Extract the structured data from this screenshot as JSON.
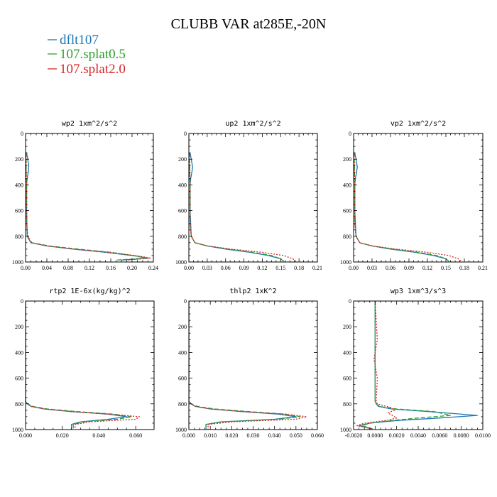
{
  "figure": {
    "title": "CLUBB VAR at285E,-20N"
  },
  "legend": [
    {
      "name": "dflt107",
      "color": "#1f77b4",
      "dash": "solid"
    },
    {
      "name": "107.splat0.5",
      "color": "#2ca02c",
      "dash": "dashed"
    },
    {
      "name": "107.splat2.0",
      "color": "#d62728",
      "dash": "dotted"
    }
  ],
  "chart_data": [
    {
      "type": "line",
      "title": "wp2  1xm^2/s^2",
      "xlim": [
        0,
        0.24
      ],
      "xticks": [
        0,
        0.04,
        0.08,
        0.12,
        0.16,
        0.2,
        0.24
      ],
      "xticklabels": [
        "0.00",
        "0.04",
        "0.08",
        "0.12",
        "0.16",
        "0.20",
        "0.24"
      ],
      "ylim": [
        1000,
        0
      ],
      "yticks": [
        0,
        200,
        400,
        600,
        800,
        1000
      ],
      "yticklabels": [
        "0",
        "200",
        "400",
        "600",
        "800",
        "1000"
      ],
      "series": [
        {
          "name": "dflt107",
          "x": [
            0.002,
            0.004,
            0.006,
            0.005,
            0.003,
            0.002,
            0.002,
            0.003,
            0.01,
            0.04,
            0.09,
            0.15,
            0.21,
            0.23,
            0.18
          ],
          "y": [
            150,
            200,
            250,
            300,
            350,
            400,
            600,
            800,
            850,
            875,
            900,
            925,
            955,
            970,
            985
          ]
        },
        {
          "name": "107.splat0.5",
          "x": [
            0.001,
            0.001,
            0.001,
            0.002,
            0.002,
            0.004,
            0.012,
            0.045,
            0.1,
            0.16,
            0.21,
            0.225,
            0.17
          ],
          "y": [
            150,
            200,
            300,
            400,
            700,
            800,
            850,
            875,
            900,
            925,
            955,
            970,
            985
          ]
        },
        {
          "name": "107.splat2.0",
          "x": [
            0.001,
            0.001,
            0.001,
            0.002,
            0.002,
            0.004,
            0.01,
            0.04,
            0.09,
            0.16,
            0.215,
            0.235,
            0.19
          ],
          "y": [
            150,
            200,
            300,
            400,
            700,
            800,
            850,
            875,
            900,
            925,
            955,
            970,
            985
          ]
        }
      ]
    },
    {
      "type": "line",
      "title": "up2  1xm^2/s^2",
      "xlim": [
        0,
        0.21
      ],
      "xticks": [
        0,
        0.03,
        0.06,
        0.09,
        0.12,
        0.15,
        0.18,
        0.21
      ],
      "xticklabels": [
        "0.00",
        "0.03",
        "0.06",
        "0.09",
        "0.12",
        "0.15",
        "0.18",
        "0.21"
      ],
      "ylim": [
        1000,
        0
      ],
      "yticks": [
        0,
        200,
        400,
        600,
        800,
        1000
      ],
      "yticklabels": [
        "0",
        "200",
        "400",
        "600",
        "800",
        "1000"
      ],
      "series": [
        {
          "name": "dflt107",
          "x": [
            0.002,
            0.004,
            0.006,
            0.005,
            0.003,
            0.002,
            0.002,
            0.004,
            0.01,
            0.03,
            0.06,
            0.1,
            0.13,
            0.15,
            0.155
          ],
          "y": [
            150,
            200,
            260,
            300,
            350,
            400,
            600,
            800,
            850,
            875,
            900,
            925,
            950,
            975,
            995
          ]
        },
        {
          "name": "107.splat0.5",
          "x": [
            0.001,
            0.001,
            0.002,
            0.002,
            0.004,
            0.01,
            0.03,
            0.065,
            0.105,
            0.135,
            0.15,
            0.155
          ],
          "y": [
            150,
            200,
            400,
            700,
            800,
            850,
            875,
            900,
            925,
            950,
            975,
            995
          ]
        },
        {
          "name": "107.splat2.0",
          "x": [
            0.001,
            0.001,
            0.002,
            0.002,
            0.004,
            0.01,
            0.03,
            0.07,
            0.12,
            0.155,
            0.17,
            0.175
          ],
          "y": [
            150,
            200,
            400,
            700,
            800,
            850,
            875,
            900,
            925,
            950,
            975,
            995
          ]
        }
      ]
    },
    {
      "type": "line",
      "title": "vp2  1xm^2/s^2",
      "xlim": [
        0,
        0.21
      ],
      "xticks": [
        0,
        0.03,
        0.06,
        0.09,
        0.12,
        0.15,
        0.18,
        0.21
      ],
      "xticklabels": [
        "0.00",
        "0.03",
        "0.06",
        "0.09",
        "0.12",
        "0.15",
        "0.18",
        "0.21"
      ],
      "ylim": [
        1000,
        0
      ],
      "yticks": [
        0,
        200,
        400,
        600,
        800,
        1000
      ],
      "yticklabels": [
        "0",
        "200",
        "400",
        "600",
        "800",
        "1000"
      ],
      "series": [
        {
          "name": "dflt107",
          "x": [
            0.002,
            0.004,
            0.006,
            0.005,
            0.003,
            0.002,
            0.002,
            0.004,
            0.01,
            0.03,
            0.06,
            0.1,
            0.13,
            0.15,
            0.155
          ],
          "y": [
            150,
            200,
            260,
            300,
            350,
            400,
            600,
            800,
            850,
            875,
            900,
            925,
            950,
            975,
            995
          ]
        },
        {
          "name": "107.splat0.5",
          "x": [
            0.001,
            0.001,
            0.002,
            0.002,
            0.004,
            0.01,
            0.03,
            0.065,
            0.105,
            0.135,
            0.15,
            0.155
          ],
          "y": [
            150,
            200,
            400,
            700,
            800,
            850,
            875,
            900,
            925,
            950,
            975,
            995
          ]
        },
        {
          "name": "107.splat2.0",
          "x": [
            0.001,
            0.001,
            0.002,
            0.002,
            0.004,
            0.01,
            0.03,
            0.07,
            0.12,
            0.155,
            0.17,
            0.175
          ],
          "y": [
            150,
            200,
            400,
            700,
            800,
            850,
            875,
            900,
            925,
            950,
            975,
            995
          ]
        }
      ]
    },
    {
      "type": "line",
      "title": "rtp2  1E-6x(kg/kg)^2",
      "xlim": [
        0,
        0.07
      ],
      "xticks": [
        0,
        0.02,
        0.04,
        0.06
      ],
      "xticklabels": [
        "0.000",
        "0.020",
        "0.040",
        "0.060"
      ],
      "ylim": [
        1000,
        0
      ],
      "yticks": [
        0,
        200,
        400,
        600,
        800,
        1000
      ],
      "yticklabels": [
        "0",
        "200",
        "400",
        "600",
        "800",
        "1000"
      ],
      "series": [
        {
          "name": "dflt107",
          "x": [
            0,
            0,
            0.001,
            0.003,
            0.01,
            0.025,
            0.045,
            0.055,
            0.045,
            0.03,
            0.025,
            0.025
          ],
          "y": [
            0,
            780,
            800,
            820,
            840,
            860,
            880,
            900,
            920,
            940,
            960,
            1000
          ]
        },
        {
          "name": "107.splat0.5",
          "x": [
            0,
            0,
            0.001,
            0.004,
            0.012,
            0.028,
            0.048,
            0.058,
            0.05,
            0.032,
            0.026,
            0.026
          ],
          "y": [
            0,
            780,
            800,
            820,
            840,
            860,
            880,
            900,
            920,
            940,
            960,
            1000
          ]
        },
        {
          "name": "107.splat2.0",
          "x": [
            0,
            0,
            0.001,
            0.003,
            0.01,
            0.025,
            0.045,
            0.062,
            0.06,
            0.035,
            0.027,
            0.027
          ],
          "y": [
            0,
            780,
            800,
            820,
            840,
            860,
            880,
            900,
            920,
            940,
            960,
            1000
          ]
        }
      ]
    },
    {
      "type": "line",
      "title": "thlp2  1xK^2",
      "xlim": [
        0,
        0.06
      ],
      "xticks": [
        0,
        0.01,
        0.02,
        0.03,
        0.04,
        0.05,
        0.06
      ],
      "xticklabels": [
        "0.000",
        "0.010",
        "0.020",
        "0.030",
        "0.040",
        "0.050",
        "0.060"
      ],
      "ylim": [
        1000,
        0
      ],
      "yticks": [
        0,
        200,
        400,
        600,
        800,
        1000
      ],
      "yticklabels": [
        "0",
        "200",
        "400",
        "600",
        "800",
        "1000"
      ],
      "series": [
        {
          "name": "dflt107",
          "x": [
            0,
            0,
            0.001,
            0.003,
            0.01,
            0.025,
            0.042,
            0.05,
            0.04,
            0.015,
            0.008,
            0.008
          ],
          "y": [
            0,
            780,
            800,
            820,
            840,
            860,
            880,
            900,
            920,
            940,
            960,
            1000
          ]
        },
        {
          "name": "107.splat0.5",
          "x": [
            0,
            0,
            0.001,
            0.004,
            0.012,
            0.028,
            0.045,
            0.052,
            0.042,
            0.016,
            0.008,
            0.008
          ],
          "y": [
            0,
            780,
            800,
            820,
            840,
            860,
            880,
            900,
            920,
            940,
            960,
            1000
          ]
        },
        {
          "name": "107.splat2.0",
          "x": [
            0,
            0,
            0.001,
            0.003,
            0.01,
            0.025,
            0.045,
            0.055,
            0.05,
            0.02,
            0.009,
            0.009
          ],
          "y": [
            0,
            780,
            800,
            820,
            840,
            860,
            880,
            900,
            920,
            940,
            960,
            1000
          ]
        }
      ]
    },
    {
      "type": "line",
      "title": "wp3  1xm^3/s^3",
      "xlim": [
        -0.002,
        0.01
      ],
      "xticks": [
        -0.002,
        0,
        0.002,
        0.004,
        0.006,
        0.008,
        0.01
      ],
      "xticklabels": [
        "-0.0020",
        "0.0000",
        "0.0020",
        "0.0040",
        "0.0060",
        "0.0080",
        "0.0100"
      ],
      "ylim": [
        1000,
        0
      ],
      "yticks": [
        0,
        200,
        400,
        600,
        800,
        1000
      ],
      "yticklabels": [
        "0",
        "200",
        "400",
        "600",
        "800",
        "1000"
      ],
      "series": [
        {
          "name": "dflt107",
          "x": [
            0,
            0,
            0.0001,
            0.0003,
            0.0015,
            0.005,
            0.0095,
            0.006,
            0.002,
            -0.0005,
            -0.0015,
            -0.0008,
            -0.0003
          ],
          "y": [
            0,
            780,
            800,
            820,
            840,
            860,
            890,
            910,
            930,
            950,
            970,
            985,
            995
          ]
        },
        {
          "name": "107.splat0.5",
          "x": [
            0,
            0,
            0.0001,
            0.0004,
            0.002,
            0.0055,
            0.007,
            0.004,
            0.0015,
            -0.0005,
            -0.0012,
            -0.0006,
            -0.0002
          ],
          "y": [
            0,
            780,
            800,
            820,
            840,
            860,
            890,
            910,
            930,
            950,
            970,
            985,
            995
          ]
        },
        {
          "name": "107.splat2.0",
          "x": [
            0,
            0.0002,
            -0.0001,
            0.0002,
            0.0001,
            0.0002,
            0.0015,
            0.0018,
            0.0012,
            0.002,
            0.001,
            -0.001,
            -0.0017,
            -0.0008,
            -0.0003
          ],
          "y": [
            0,
            300,
            450,
            600,
            780,
            800,
            830,
            850,
            870,
            910,
            930,
            950,
            970,
            985,
            995
          ]
        }
      ]
    }
  ]
}
